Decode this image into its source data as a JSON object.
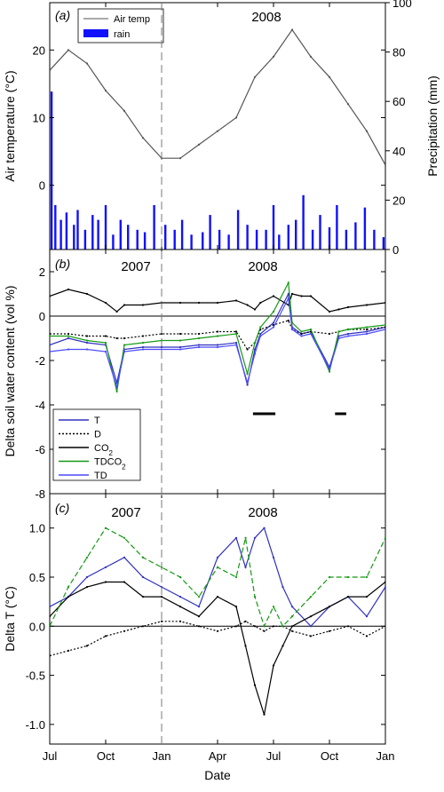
{
  "figure": {
    "x_axis_label": "Date",
    "x_ticks": [
      "Jul",
      "Oct",
      "Jan",
      "Apr",
      "Jul",
      "Oct",
      "Jan"
    ],
    "year_labels": [
      "2007",
      "2008"
    ]
  },
  "chart_data": [
    {
      "type": "line",
      "panel_label": "(a)",
      "ylabel": "Air temperature (°C)",
      "ylim": [
        -9.5,
        27
      ],
      "y_ticks": [
        "0",
        "10",
        "20"
      ],
      "y2label": "Precipitation (mm)",
      "y2lim": [
        0,
        100
      ],
      "y2_ticks": [
        "0",
        "20",
        "40",
        "60",
        "80",
        "100"
      ],
      "year_label": "2008",
      "legend_position": "top-left",
      "legend": [
        "Air temp",
        "rain"
      ],
      "colors": {
        "Air temp": "#555555",
        "rain": "#1010ff"
      },
      "x_months": [
        0,
        1,
        2,
        3,
        4,
        5,
        6,
        7,
        8,
        9,
        10,
        11,
        12,
        13,
        14,
        15,
        16,
        17,
        18
      ],
      "series": [
        {
          "name": "Air temp",
          "values": [
            17,
            20,
            18,
            14,
            11,
            7,
            4,
            4,
            6,
            8,
            10,
            16,
            19,
            23,
            19,
            16,
            12,
            8,
            3
          ]
        }
      ],
      "rain": {
        "x_months": [
          0.1,
          0.3,
          0.6,
          0.9,
          1.3,
          1.5,
          1.9,
          2.3,
          2.6,
          3.0,
          3.4,
          3.8,
          4.2,
          4.7,
          5.1,
          5.6,
          6.2,
          6.7,
          7.1,
          7.6,
          8.2,
          8.6,
          9.1,
          9.6,
          10.1,
          10.6,
          11.1,
          11.6,
          12.0,
          12.3,
          12.8,
          13.2,
          13.6,
          14.1,
          14.5,
          15.0,
          15.4,
          15.9,
          16.4,
          16.9,
          17.4,
          17.9
        ],
        "values": [
          64,
          18,
          12,
          15,
          10,
          16,
          8,
          14,
          12,
          18,
          6,
          12,
          10,
          8,
          7,
          18,
          10,
          8,
          12,
          6,
          7,
          14,
          8,
          6,
          16,
          10,
          8,
          8,
          18,
          6,
          10,
          12,
          22,
          8,
          14,
          9,
          18,
          8,
          11,
          17,
          8,
          5
        ]
      }
    },
    {
      "type": "line",
      "panel_label": "(b)",
      "ylabel": "Delta soil water content (vol %)",
      "ylim": [
        -8,
        3
      ],
      "y_ticks": [
        "-8",
        "-6",
        "-4",
        "-2",
        "0",
        "2"
      ],
      "year_labels": [
        "2007",
        "2008"
      ],
      "legend_position": "bottom-left",
      "x_months": [
        0,
        1,
        2,
        3,
        3.6,
        4,
        5,
        6,
        7,
        8,
        9,
        10,
        10.6,
        11,
        11.3,
        12,
        12.8,
        13,
        13.5,
        14,
        15,
        15.5,
        16,
        17,
        18
      ],
      "series": [
        {
          "name": "T",
          "color": "#3030c0",
          "dash": "",
          "values": [
            -1.3,
            -1.0,
            -1.2,
            -1.3,
            -3.0,
            -1.5,
            -1.4,
            -1.4,
            -1.4,
            -1.3,
            -1.3,
            -1.2,
            -3.1,
            -1.5,
            -0.8,
            -0.3,
            1.0,
            -0.5,
            -0.8,
            -0.7,
            -2.3,
            -0.9,
            -0.8,
            -0.7,
            -0.5
          ]
        },
        {
          "name": "D",
          "color": "#000000",
          "dash": "2,2",
          "values": [
            -0.8,
            -0.8,
            -0.9,
            -0.9,
            -1.0,
            -1.0,
            -0.9,
            -0.8,
            -0.8,
            -0.8,
            -0.7,
            -0.7,
            -1.5,
            -1.2,
            -0.6,
            -0.4,
            -0.2,
            -0.6,
            -0.8,
            -0.7,
            -0.8,
            -0.7,
            -0.6,
            -0.6,
            -0.5
          ]
        },
        {
          "name": "CO2",
          "label": "CO",
          "sub": "2",
          "color": "#000000",
          "dash": "",
          "values": [
            0.9,
            1.2,
            1.0,
            0.6,
            0.2,
            0.5,
            0.5,
            0.6,
            0.6,
            0.6,
            0.6,
            0.7,
            0.5,
            0.3,
            0.6,
            0.9,
            0.5,
            1.0,
            0.9,
            0.9,
            0.2,
            0.3,
            0.4,
            0.5,
            0.6
          ]
        },
        {
          "name": "TDCO2",
          "label": "TDCO",
          "sub": "2",
          "color": "#159915",
          "dash": "",
          "values": [
            -0.9,
            -0.9,
            -1.1,
            -1.2,
            -3.4,
            -1.3,
            -1.2,
            -1.1,
            -1.1,
            -1.0,
            -0.9,
            -0.8,
            -2.6,
            -1.2,
            -0.5,
            0.2,
            1.5,
            -0.3,
            -0.7,
            -0.6,
            -2.5,
            -0.7,
            -0.6,
            -0.5,
            -0.4
          ]
        },
        {
          "name": "TD",
          "color": "#4a4aff",
          "dash": "",
          "values": [
            -1.6,
            -1.5,
            -1.5,
            -1.6,
            -3.2,
            -1.6,
            -1.5,
            -1.5,
            -1.5,
            -1.4,
            -1.4,
            -1.3,
            -3.0,
            -1.7,
            -0.9,
            -0.5,
            0.8,
            -0.6,
            -0.9,
            -0.8,
            -2.4,
            -1.0,
            -0.9,
            -0.8,
            -0.6
          ]
        }
      ],
      "treatment_bars": [
        [
          10.9,
          12.1
        ],
        [
          15.3,
          15.9
        ]
      ],
      "treatment_bar_y": -4.4
    },
    {
      "type": "line",
      "panel_label": "(c)",
      "ylabel": "Delta T (°C)",
      "ylim": [
        -1.2,
        1.35
      ],
      "y_ticks": [
        "-1.0",
        "-0.5",
        "0.0",
        "0.5",
        "1.0"
      ],
      "year_labels": [
        "2007",
        "2008"
      ],
      "x_months": [
        0,
        1,
        2,
        3,
        4,
        5,
        6,
        7,
        8,
        9,
        10,
        10.5,
        11,
        11.5,
        12,
        12.5,
        13,
        14,
        15,
        16,
        17,
        18
      ],
      "series": [
        {
          "name": "T",
          "color": "#3030c0",
          "dash": "",
          "values": [
            0.2,
            0.3,
            0.5,
            0.6,
            0.7,
            0.5,
            0.4,
            0.3,
            0.2,
            0.7,
            0.9,
            0.6,
            0.9,
            1.0,
            0.7,
            0.4,
            0.2,
            0.0,
            0.2,
            0.3,
            0.1,
            0.4
          ]
        },
        {
          "name": "D",
          "color": "#000000",
          "dash": "2,2",
          "values": [
            -0.3,
            -0.25,
            -0.2,
            -0.1,
            -0.05,
            0.0,
            0.05,
            0.05,
            0.0,
            -0.05,
            0.0,
            0.05,
            0.0,
            -0.05,
            0.0,
            0.0,
            -0.05,
            -0.1,
            -0.05,
            0.0,
            -0.1,
            0.0
          ]
        },
        {
          "name": "CO2",
          "label": "CO",
          "sub": "2",
          "color": "#000000",
          "dash": "",
          "values": [
            0.1,
            0.3,
            0.4,
            0.45,
            0.45,
            0.3,
            0.3,
            0.2,
            0.1,
            0.3,
            0.2,
            -0.2,
            -0.6,
            -0.9,
            -0.4,
            -0.2,
            0.0,
            0.1,
            0.2,
            0.3,
            0.3,
            0.45
          ]
        },
        {
          "name": "TDCO2",
          "label": "TDCO",
          "sub": "2",
          "color": "#159915",
          "dash": "6,3",
          "values": [
            0.0,
            0.4,
            0.7,
            1.0,
            0.9,
            0.7,
            0.6,
            0.5,
            0.3,
            0.6,
            0.5,
            0.9,
            0.3,
            0.0,
            0.2,
            0.0,
            0.1,
            0.3,
            0.5,
            0.5,
            0.5,
            0.9
          ]
        }
      ]
    }
  ]
}
